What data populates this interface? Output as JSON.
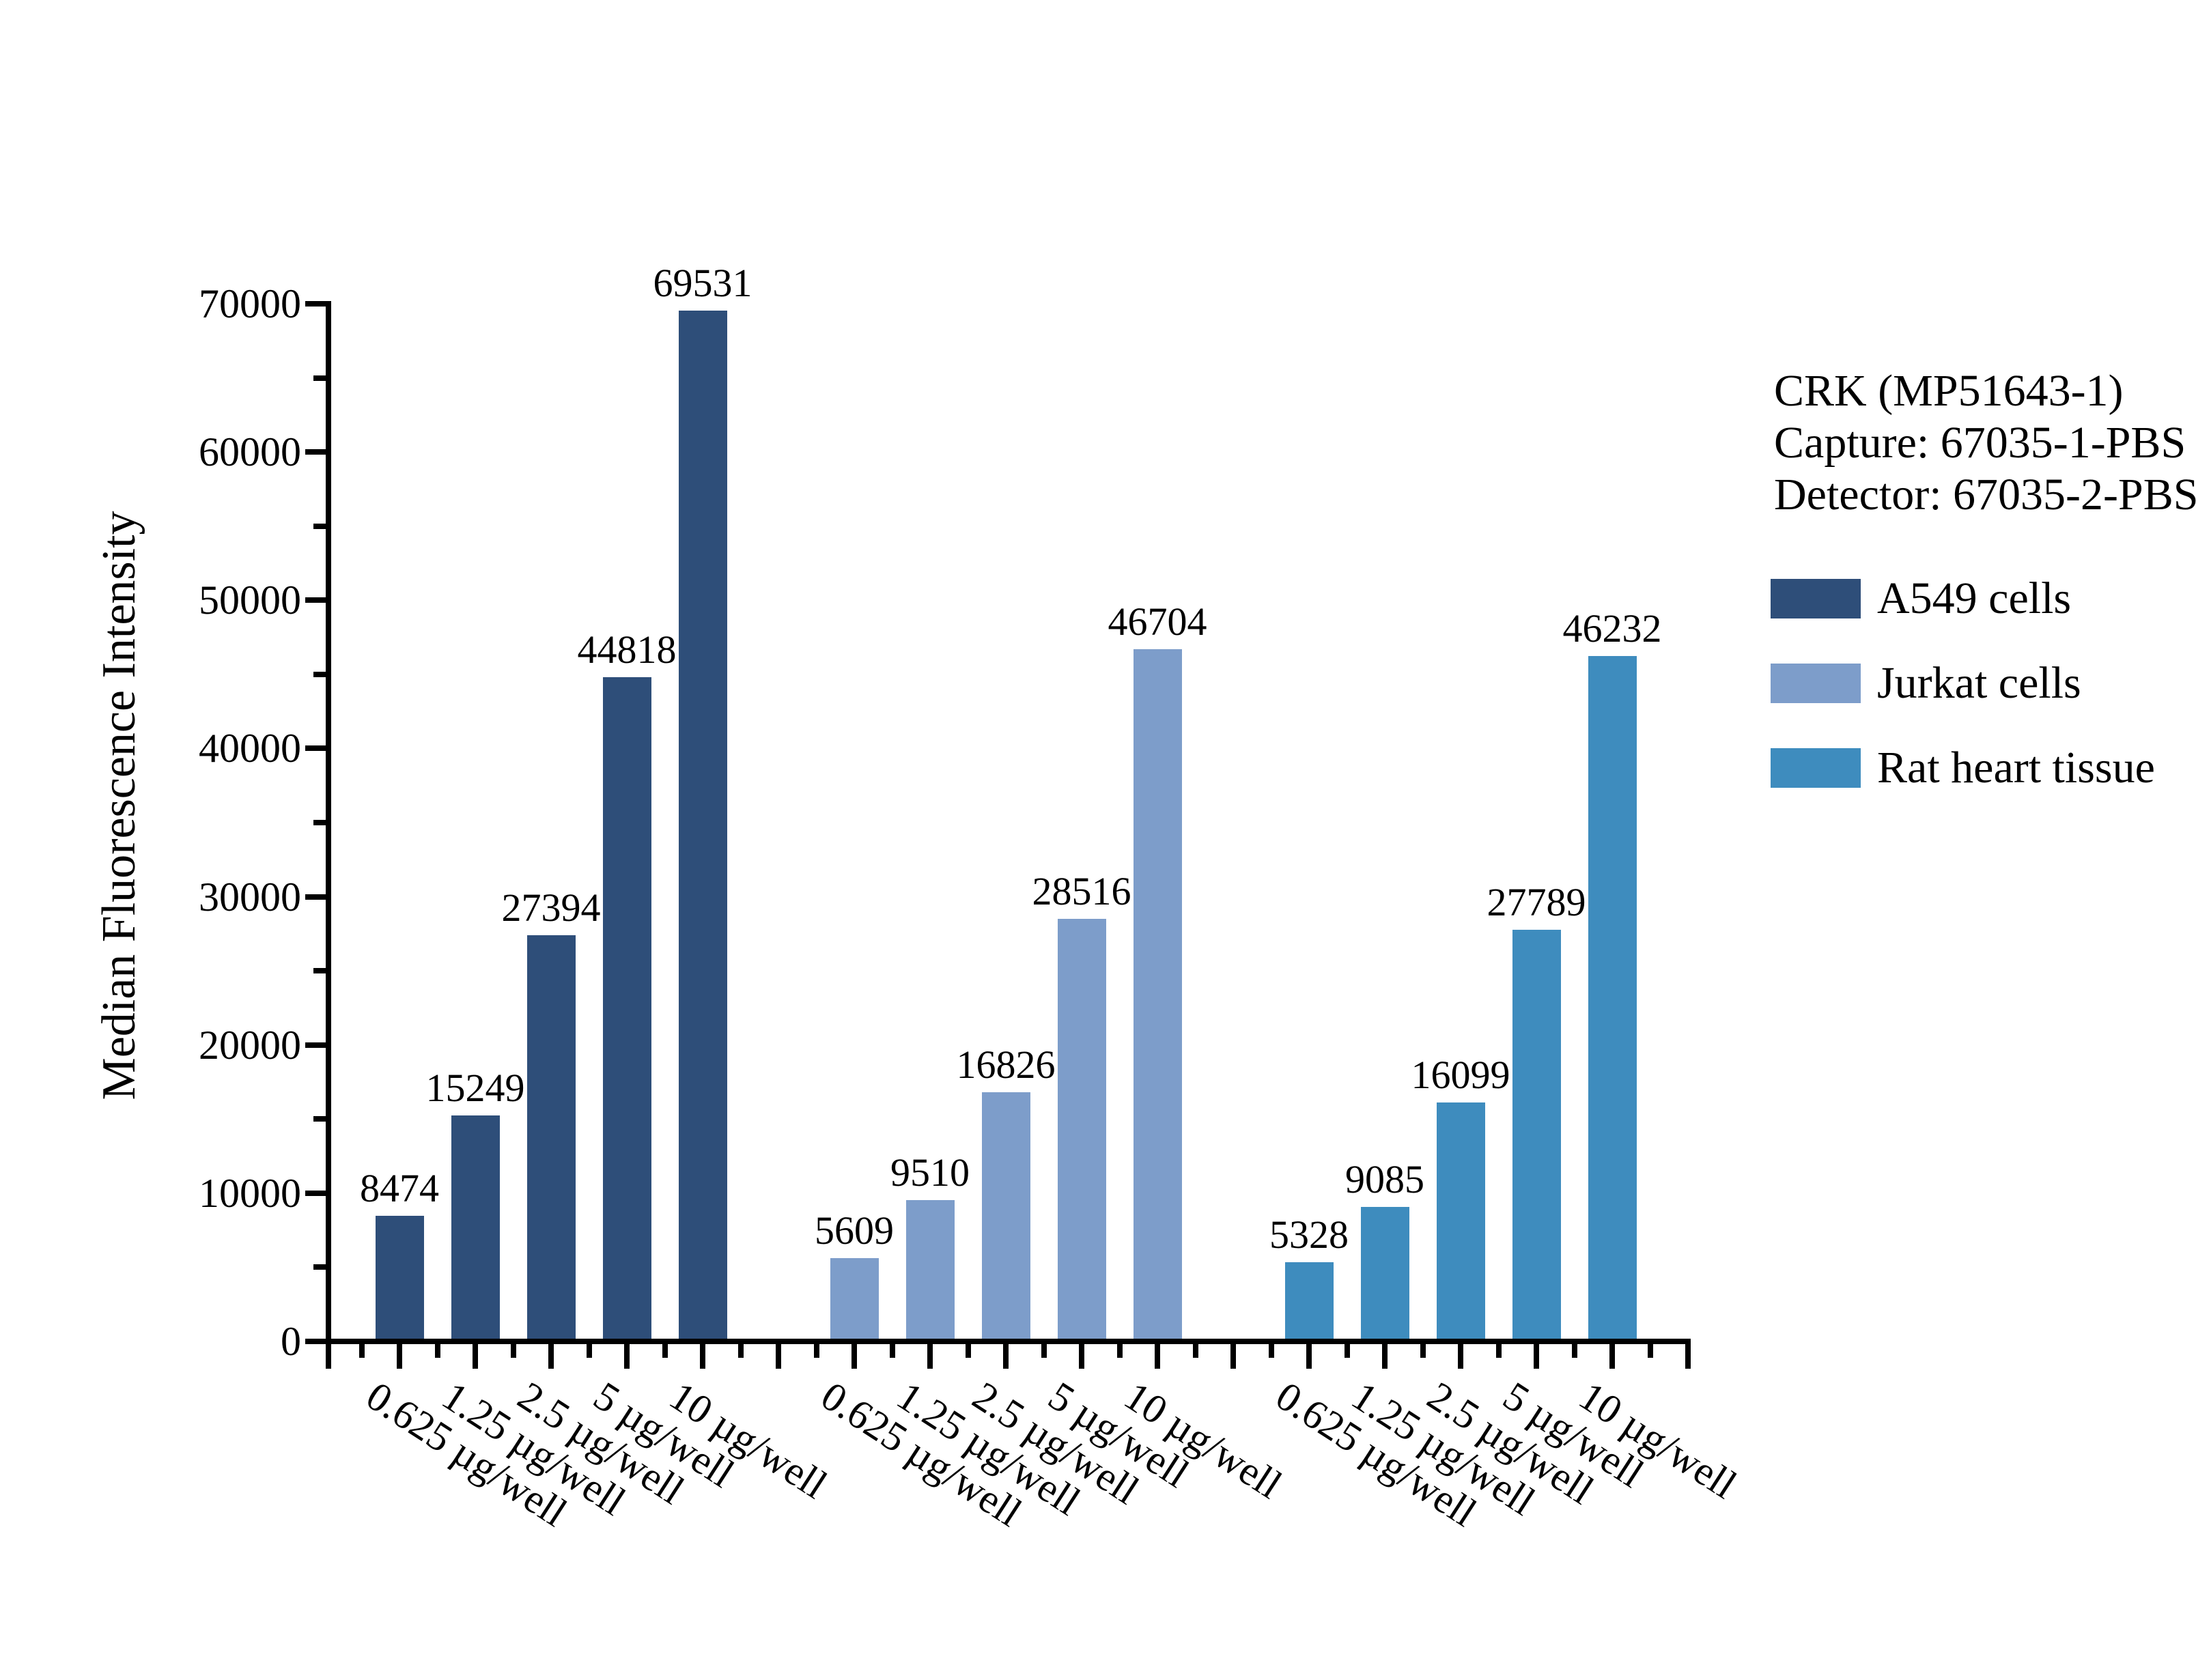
{
  "chart_data": {
    "type": "bar",
    "title": "",
    "xlabel": "",
    "ylabel": "Median Fluorescence Intensity",
    "ylim": [
      0,
      70000
    ],
    "yticks": [
      0,
      10000,
      20000,
      30000,
      40000,
      50000,
      60000,
      70000
    ],
    "y_minor_tick_interval": 5000,
    "grid": false,
    "bar_value_labels": true,
    "legend_position": "right",
    "categories": [
      "0.625 µg/well",
      "1.25 µg/well",
      "2.5 µg/well",
      "5 µg/well",
      "10 µg/well"
    ],
    "annotation_lines": [
      "CRK (MP51643-1)",
      "Capture: 67035-1-PBS",
      "Detector: 67035-2-PBS"
    ],
    "series": [
      {
        "name": "A549 cells",
        "color": "#2E4E79",
        "values": [
          8474,
          15249,
          27394,
          44818,
          69531
        ]
      },
      {
        "name": "Jurkat cells",
        "color": "#7D9DCA",
        "values": [
          5609,
          9510,
          16826,
          28516,
          46704
        ]
      },
      {
        "name": "Rat heart tissue",
        "color": "#3E8CBE",
        "values": [
          5328,
          9085,
          16099,
          27789,
          46232
        ]
      }
    ]
  }
}
